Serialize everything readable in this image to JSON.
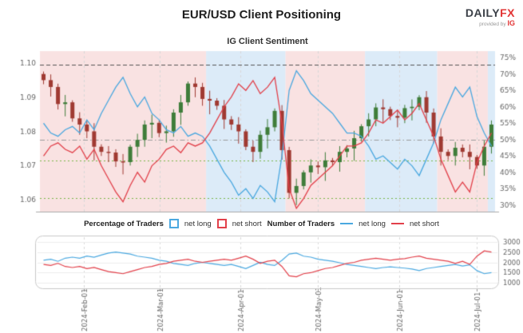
{
  "header": {
    "title": "EUR/USD Client Positioning",
    "logo_daily": "DAILY",
    "logo_fx": "FX",
    "provided_by": "provided by",
    "ig": "IG"
  },
  "subtitle": "IG Client Sentiment",
  "legend": {
    "percentage_of_traders": "Percentage of Traders",
    "net_long_pct": "net long",
    "net_short_pct": "net short",
    "number_of_traders": "Number of Traders",
    "net_long_count": "net long",
    "net_short_count": "net short"
  },
  "colors": {
    "net_long": "#4aa8e0",
    "net_short": "#e2404a",
    "candle_up": "#3f7d3a",
    "candle_down": "#a03a32",
    "band_long": "#f9e2e2",
    "band_short": "#dcebf8",
    "grid": "#d8d8d8",
    "axis_text": "#666666"
  },
  "chart_data": [
    {
      "type": "candlestick+line",
      "title": "IG Client Sentiment",
      "x_ticks": [
        {
          "label": "2024-Feb-01",
          "pos": 0.097
        },
        {
          "label": "2024-Mar-01",
          "pos": 0.263
        },
        {
          "label": "2024-Apr-01",
          "pos": 0.44
        },
        {
          "label": "2024-May-01",
          "pos": 0.611
        },
        {
          "label": "2024-Jun-01",
          "pos": 0.789
        },
        {
          "label": "2024-Jul-01",
          "pos": 0.96
        }
      ],
      "price_axis": {
        "ticks": [
          1.1,
          1.09,
          1.08,
          1.07,
          1.06
        ],
        "min": 1.0565,
        "max": 1.1035
      },
      "pct_axis": {
        "ticks": [
          75,
          70,
          65,
          60,
          55,
          50,
          45,
          40,
          35,
          30
        ],
        "min": 28,
        "max": 77
      },
      "first_open": 1.0968,
      "wick_pattern": [
        0.0012,
        0.0028,
        0.0016,
        0.0036,
        0.001,
        0.003,
        0.002,
        0.004
      ],
      "candles_close": [
        1.095,
        1.093,
        1.088,
        1.0885,
        1.0838,
        1.082,
        1.08,
        1.0755,
        1.074,
        1.0738,
        1.0712,
        1.071,
        1.0755,
        1.0775,
        1.082,
        1.0825,
        1.0795,
        1.08,
        1.0855,
        1.0885,
        1.094,
        1.093,
        1.0895,
        1.089,
        1.0875,
        1.0835,
        1.082,
        1.08,
        1.0755,
        1.074,
        1.079,
        1.0812,
        1.086,
        1.0745,
        1.062,
        1.064,
        1.068,
        1.07,
        1.0695,
        1.0715,
        1.071,
        1.074,
        1.075,
        1.078,
        1.0815,
        1.0835,
        1.087,
        1.0865,
        1.0845,
        1.084,
        1.0868,
        1.0872,
        1.09,
        1.0855,
        1.0785,
        1.074,
        1.0728,
        1.0752,
        1.074,
        1.0725,
        1.07,
        1.0755,
        1.082
      ],
      "net_long_pct": [
        55,
        52,
        51,
        53,
        54,
        52,
        56,
        53,
        58,
        62,
        66,
        69,
        64,
        60,
        63,
        58,
        56,
        53,
        52,
        54,
        51,
        52,
        51,
        48,
        44,
        40,
        37,
        33,
        35,
        32,
        36,
        34,
        31,
        45,
        65,
        71,
        68,
        64,
        62,
        60,
        58,
        55,
        52,
        52,
        51,
        48,
        44,
        45,
        43,
        41,
        44,
        42,
        39,
        44,
        49,
        56,
        61,
        66,
        63,
        66,
        57,
        52,
        48
      ],
      "net_short_pct": [
        45,
        48,
        49,
        47,
        46,
        48,
        44,
        47,
        42,
        38,
        34,
        31,
        36,
        40,
        37,
        42,
        44,
        47,
        48,
        46,
        49,
        48,
        49,
        52,
        56,
        60,
        63,
        67,
        65,
        68,
        64,
        66,
        69,
        55,
        35,
        29,
        32,
        36,
        38,
        40,
        42,
        45,
        48,
        48,
        49,
        52,
        56,
        55,
        57,
        59,
        56,
        58,
        61,
        56,
        51,
        44,
        39,
        34,
        37,
        34,
        43,
        48,
        52
      ],
      "reference_lines": [
        {
          "axis": "pct",
          "value": 50,
          "style": "dashdot",
          "color": "#9a9a9a"
        },
        {
          "axis": "price",
          "value": 1.0995,
          "style": "dashed",
          "color": "#555555"
        },
        {
          "axis": "price",
          "value": 1.0715,
          "style": "dotted",
          "color": "#7ab648"
        },
        {
          "axis": "price",
          "value": 1.0605,
          "style": "dotted",
          "color": "#7ab648"
        }
      ]
    },
    {
      "type": "line",
      "y_axis": {
        "ticks": [
          3000,
          2500,
          2000,
          1500,
          1000
        ],
        "min": 900,
        "max": 3100
      },
      "net_long_count": [
        2100,
        2150,
        2050,
        2200,
        2250,
        2200,
        2300,
        2250,
        2350,
        2450,
        2500,
        2450,
        2400,
        2300,
        2250,
        2200,
        2100,
        2050,
        1950,
        1900,
        1850,
        1950,
        2000,
        1950,
        1900,
        1850,
        1900,
        1800,
        1700,
        1850,
        2000,
        1900,
        1850,
        2100,
        2400,
        2450,
        2300,
        2250,
        2150,
        2100,
        2050,
        1980,
        1900,
        1850,
        1800,
        1750,
        1700,
        1750,
        1780,
        1750,
        1720,
        1680,
        1600,
        1700,
        1750,
        1800,
        1850,
        1900,
        1820,
        1880,
        1600,
        1450,
        1500
      ],
      "net_short_count": [
        1900,
        1850,
        1950,
        1800,
        1750,
        1800,
        1700,
        1750,
        1650,
        1550,
        1500,
        1450,
        1550,
        1650,
        1750,
        1800,
        1900,
        1950,
        2050,
        2100,
        2150,
        2050,
        2000,
        2050,
        2100,
        2150,
        2100,
        2200,
        2300,
        2150,
        1950,
        2050,
        2100,
        1800,
        1350,
        1300,
        1450,
        1500,
        1600,
        1700,
        1750,
        1850,
        1950,
        2000,
        2100,
        2150,
        2200,
        2150,
        2100,
        2150,
        2180,
        2250,
        2300,
        2200,
        2150,
        2100,
        2050,
        1950,
        2050,
        1900,
        2300,
        2550,
        2500
      ]
    }
  ]
}
